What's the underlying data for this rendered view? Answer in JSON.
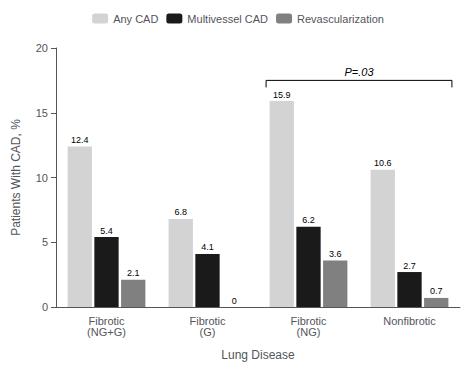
{
  "chart_data": {
    "type": "bar",
    "categories": [
      "Fibrotic\n(NG+G)",
      "Fibrotic\n(G)",
      "Fibrotic\n(NG)",
      "Nonfibrotic"
    ],
    "series": [
      {
        "name": "Any CAD",
        "color": "#d3d3d3",
        "values": [
          12.4,
          6.8,
          15.9,
          10.6
        ]
      },
      {
        "name": "Multivessel CAD",
        "color": "#1a1a1a",
        "values": [
          5.4,
          4.1,
          6.2,
          2.7
        ]
      },
      {
        "name": "Revascularization",
        "color": "#808080",
        "values": [
          2.1,
          0,
          3.6,
          0.7
        ]
      }
    ],
    "xlabel": "Lung Disease",
    "ylabel": "Patients With CAD, %",
    "ylim": [
      0,
      20
    ],
    "yticks": [
      0,
      5,
      10,
      15,
      20
    ],
    "grid": false,
    "legend": "top",
    "data_labels": true,
    "annotations": [
      {
        "text": "P=.03",
        "y": 17.5,
        "x_from": "Fibrotic\n(NG)",
        "x_to": "Nonfibrotic"
      }
    ]
  }
}
